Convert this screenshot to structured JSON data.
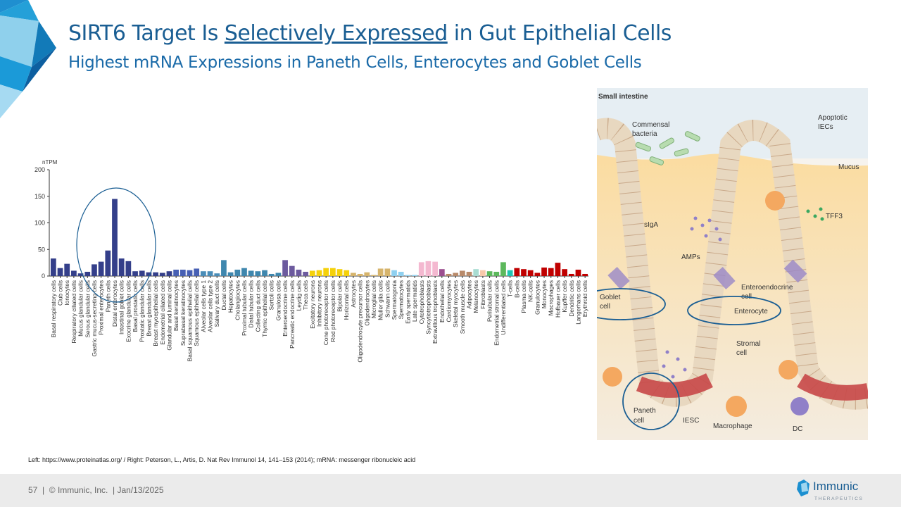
{
  "slide": {
    "title_pre": "SIRT6 Target Is ",
    "title_emph": "Selectively Expressed",
    "title_post": " in Gut Epithelial Cells",
    "subtitle": "Highest mRNA Expressions in Paneth Cells, Enterocytes and Goblet Cells",
    "source": "Left: https://www.proteinatlas.org/ / Right: Peterson, L., Artis, D. Nat Rev Immunol 14, 141–153 (2014); mRNA: messenger ribonucleic acid",
    "footer": "57  |  © Immunic, Inc.  | Jan/13/2025",
    "brand_name": "Immunic",
    "brand_sub": "THERAPEUTICS",
    "accent_color": "#1a5e93"
  },
  "diagram": {
    "title": "Small intestine",
    "labels": {
      "commensal": "Commensal",
      "bacteria": "bacteria",
      "apoptotic": "Apoptotic",
      "iecs": "IECs",
      "mucus": "Mucus",
      "tff3": "TFF3",
      "siga": "sIgA",
      "amps": "AMPs",
      "goblet1": "Goblet",
      "goblet2": "cell",
      "enteroendocrine1": "Enteroendocrine",
      "enteroendocrine2": "cell",
      "enterocyte": "Enterocyte",
      "stromal1": "Stromal",
      "stromal2": "cell",
      "paneth1": "Paneth",
      "paneth2": "cell",
      "iesc": "IESC",
      "macrophage": "Macrophage",
      "dc": "DC"
    }
  },
  "chart_data": {
    "type": "bar",
    "title": "",
    "xlabel": "",
    "ylabel": "nTPM",
    "ylim": [
      0,
      200
    ],
    "yticks": [
      0,
      50,
      100,
      150,
      200
    ],
    "grid": false,
    "highlight": "ellipse around Proximal enterocytes – Exocrine glandular cells",
    "categories": [
      "Basal respiratory cells",
      "Club cells",
      "Ionocytes",
      "Respiratory ciliated cells",
      "Mucus glandular cells",
      "Serous glandular cells",
      "Gastric mucus-secreting cells",
      "Proximal enterocytes",
      "Paneth cells",
      "Distal enterocytes",
      "Intestinal goblet cells",
      "Exocrine glandular cells",
      "Basal prostatic cells",
      "Prostatic glandular cells",
      "Breast glandular cells",
      "Breast myoepithelial cells",
      "Endometrial ciliated cells",
      "Glandular and luminal cells",
      "Basal keratinocytes",
      "Suprabasal keratinocytes",
      "Basal squamous epithelial cells",
      "Squamous epithelial cells",
      "Alveolar cells type 1",
      "Alveolar cells type 2",
      "Salivary duct cells",
      "Ductal cells",
      "Hepatocytes",
      "Cholangiocytes",
      "Proximal tubular cells",
      "Distal tubular cells",
      "Collecting duct cells",
      "Thymic epithelial cells",
      "Sertoli cells",
      "Granulosa cells",
      "Enteroendocrine cells",
      "Pancreatic endocrine cells",
      "Leydig cells",
      "Theca cells",
      "Excitatory neurons",
      "Inhibitory neurons",
      "Cone photoreceptor cells",
      "Rod photoreceptor cells",
      "Bipolar cells",
      "Horizontal cells",
      "Astrocytes",
      "Oligodendrocyte precursor cells",
      "Oligodendrocytes",
      "Microglial cells",
      "Muller glia cells",
      "Schwann cells",
      "Spermatogonia",
      "Spermatocytes",
      "Early spermatids",
      "Late spermatids",
      "Cytotrophoblasts",
      "Syncytiotrophoblasts",
      "Extravillous trophoblasts",
      "Endothelial cells",
      "Cardiomyocytes",
      "Skeletal myocytes",
      "Smooth muscle cells",
      "Adipocytes",
      "Melanocytes",
      "Fibroblasts",
      "Peritubular cells",
      "Endometrial stromal cells",
      "Undifferentiated cells",
      "T-cells",
      "B-cells",
      "Plasma cells",
      "NK-cells",
      "Granulocytes",
      "Monocytes",
      "Macrophages",
      "Hofbauer cells",
      "Kupffer cells",
      "Dendritic cells",
      "Langerhans cells",
      "Erythroid cells"
    ],
    "values": [
      33,
      15,
      23,
      10,
      5,
      8,
      22,
      27,
      48,
      145,
      33,
      28,
      9,
      10,
      7,
      7,
      6,
      9,
      12,
      12,
      11,
      14,
      9,
      9,
      5,
      30,
      7,
      12,
      15,
      10,
      9,
      11,
      4,
      6,
      30,
      19,
      12,
      8,
      10,
      11,
      15,
      15,
      13,
      11,
      6,
      4,
      7,
      2,
      14,
      14,
      11,
      8,
      2,
      2,
      26,
      28,
      27,
      13,
      4,
      6,
      10,
      8,
      13,
      11,
      9,
      8,
      26,
      11,
      15,
      13,
      11,
      6,
      16,
      15,
      25,
      13,
      4,
      12,
      4
    ],
    "colors": [
      "#343f8a",
      "#343f8a",
      "#343f8a",
      "#343f8a",
      "#343f8a",
      "#343f8a",
      "#343f8a",
      "#343f8a",
      "#343f8a",
      "#343f8a",
      "#343f8a",
      "#343f8a",
      "#343f8a",
      "#343f8a",
      "#343f8a",
      "#343f8a",
      "#343f8a",
      "#343f8a",
      "#4760b4",
      "#4760b4",
      "#4760b4",
      "#4760b4",
      "#4a8db8",
      "#4a8db8",
      "#4a8db8",
      "#3f87ae",
      "#3f87ae",
      "#3f87ae",
      "#3f87ae",
      "#3f87ae",
      "#3f87ae",
      "#3f87ae",
      "#3f87ae",
      "#3f87ae",
      "#6c5a9e",
      "#6c5a9e",
      "#6c5a9e",
      "#6c5a9e",
      "#f5d10a",
      "#f5d10a",
      "#f5d10a",
      "#f5d10a",
      "#f5d10a",
      "#f5d10a",
      "#d6b46c",
      "#d6b46c",
      "#d6b46c",
      "#d6b46c",
      "#d6b46c",
      "#d6b46c",
      "#8fd0f0",
      "#8fd0f0",
      "#8fd0f0",
      "#8fd0f0",
      "#f4b8d0",
      "#f4b8d0",
      "#f4b8d0",
      "#9c4f8f",
      "#b88a6a",
      "#b88a6a",
      "#b88a6a",
      "#b88a6a",
      "#a8dcd2",
      "#f8c8aa",
      "#5cb85c",
      "#5cb85c",
      "#5cb85c",
      "#22c4b0",
      "#c00000",
      "#c00000",
      "#c00000",
      "#c00000",
      "#c00000",
      "#c00000",
      "#c00000",
      "#c00000",
      "#c00000",
      "#c00000",
      "#c00000"
    ]
  }
}
